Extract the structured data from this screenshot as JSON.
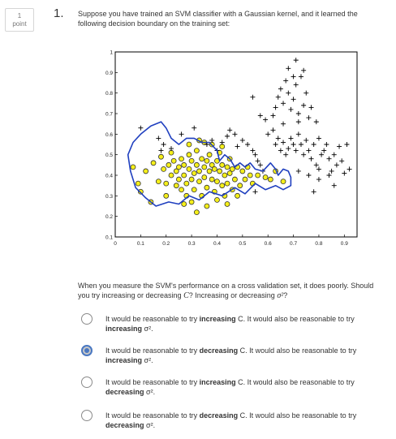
{
  "points": {
    "value": "1",
    "label": "point"
  },
  "question": {
    "number": "1.",
    "text": "Suppose you have trained an SVM classifier with a Gaussian kernel, and it learned the following decision boundary on the training set:",
    "followup_a": "When you measure the SVM's performance on a cross validation set, it does poorly. Should you try increasing or decreasing ",
    "followup_C": "C",
    "followup_b": "? Increasing or decreasing ",
    "followup_sigma": "σ²",
    "followup_c": "?"
  },
  "options": [
    {
      "pre": "It would be reasonable to try ",
      "act1": "increasing",
      "mid": " C. It would also be reasonable to try ",
      "act2": "increasing",
      "post": " σ².",
      "selected": false
    },
    {
      "pre": "It would be reasonable to try ",
      "act1": "decreasing",
      "mid": " C. It would also be reasonable to try ",
      "act2": "increasing",
      "post": " σ².",
      "selected": true
    },
    {
      "pre": "It would be reasonable to try ",
      "act1": "increasing",
      "mid": " C. It would also be reasonable to try ",
      "act2": "decreasing",
      "post": " σ².",
      "selected": false
    },
    {
      "pre": "It would be reasonable to try ",
      "act1": "decreasing",
      "mid": " C. It would also be reasonable to try ",
      "act2": "decreasing",
      "post": " σ².",
      "selected": false
    }
  ],
  "chart_data": {
    "type": "scatter",
    "xlim": [
      0,
      0.95
    ],
    "ylim": [
      0.1,
      1.0
    ],
    "xticks": [
      "0",
      "0.1",
      "0.2",
      "0.3",
      "0.4",
      "0.5",
      "0.6",
      "0.7",
      "0.8",
      "0.9"
    ],
    "yticks": [
      "0.1",
      "0.2",
      "0.3",
      "0.4",
      "0.5",
      "0.6",
      "0.7",
      "0.8",
      "0.9",
      "1"
    ],
    "grid": false,
    "colors": {
      "positive": "#000000",
      "negative_fill": "#f5ef1a",
      "negative_edge": "#333333",
      "boundary": "#1f3fbf"
    },
    "series": [
      {
        "marker": "plus",
        "points": [
          [
            0.1,
            0.63
          ],
          [
            0.17,
            0.58
          ],
          [
            0.18,
            0.52
          ],
          [
            0.19,
            0.55
          ],
          [
            0.22,
            0.53
          ],
          [
            0.26,
            0.6
          ],
          [
            0.31,
            0.63
          ],
          [
            0.36,
            0.55
          ],
          [
            0.38,
            0.57
          ],
          [
            0.4,
            0.52
          ],
          [
            0.42,
            0.56
          ],
          [
            0.44,
            0.59
          ],
          [
            0.45,
            0.62
          ],
          [
            0.47,
            0.6
          ],
          [
            0.48,
            0.54
          ],
          [
            0.5,
            0.57
          ],
          [
            0.52,
            0.55
          ],
          [
            0.54,
            0.52
          ],
          [
            0.55,
            0.5
          ],
          [
            0.56,
            0.47
          ],
          [
            0.57,
            0.45
          ],
          [
            0.58,
            0.42
          ],
          [
            0.55,
            0.32
          ],
          [
            0.6,
            0.6
          ],
          [
            0.62,
            0.62
          ],
          [
            0.63,
            0.55
          ],
          [
            0.64,
            0.58
          ],
          [
            0.65,
            0.52
          ],
          [
            0.66,
            0.56
          ],
          [
            0.67,
            0.5
          ],
          [
            0.68,
            0.53
          ],
          [
            0.69,
            0.58
          ],
          [
            0.7,
            0.55
          ],
          [
            0.71,
            0.52
          ],
          [
            0.72,
            0.6
          ],
          [
            0.73,
            0.55
          ],
          [
            0.74,
            0.5
          ],
          [
            0.75,
            0.57
          ],
          [
            0.76,
            0.52
          ],
          [
            0.77,
            0.48
          ],
          [
            0.78,
            0.55
          ],
          [
            0.79,
            0.45
          ],
          [
            0.8,
            0.58
          ],
          [
            0.81,
            0.5
          ],
          [
            0.82,
            0.52
          ],
          [
            0.83,
            0.55
          ],
          [
            0.84,
            0.48
          ],
          [
            0.85,
            0.42
          ],
          [
            0.86,
            0.5
          ],
          [
            0.87,
            0.45
          ],
          [
            0.88,
            0.54
          ],
          [
            0.89,
            0.47
          ],
          [
            0.9,
            0.41
          ],
          [
            0.91,
            0.55
          ],
          [
            0.92,
            0.43
          ],
          [
            0.72,
            0.42
          ],
          [
            0.76,
            0.4
          ],
          [
            0.8,
            0.38
          ],
          [
            0.84,
            0.4
          ],
          [
            0.86,
            0.35
          ],
          [
            0.78,
            0.32
          ],
          [
            0.62,
            0.69
          ],
          [
            0.63,
            0.73
          ],
          [
            0.64,
            0.78
          ],
          [
            0.65,
            0.82
          ],
          [
            0.66,
            0.75
          ],
          [
            0.67,
            0.86
          ],
          [
            0.68,
            0.8
          ],
          [
            0.69,
            0.72
          ],
          [
            0.7,
            0.77
          ],
          [
            0.71,
            0.84
          ],
          [
            0.72,
            0.7
          ],
          [
            0.73,
            0.88
          ],
          [
            0.74,
            0.74
          ],
          [
            0.75,
            0.8
          ],
          [
            0.76,
            0.68
          ],
          [
            0.77,
            0.73
          ],
          [
            0.68,
            0.92
          ],
          [
            0.7,
            0.88
          ],
          [
            0.74,
            0.91
          ],
          [
            0.66,
            0.65
          ],
          [
            0.72,
            0.66
          ],
          [
            0.79,
            0.66
          ],
          [
            0.59,
            0.67
          ],
          [
            0.57,
            0.69
          ],
          [
            0.54,
            0.78
          ],
          [
            0.71,
            0.96
          ],
          [
            0.8,
            0.43
          ]
        ]
      },
      {
        "marker": "circle",
        "points": [
          [
            0.07,
            0.44
          ],
          [
            0.09,
            0.36
          ],
          [
            0.1,
            0.32
          ],
          [
            0.14,
            0.27
          ],
          [
            0.12,
            0.42
          ],
          [
            0.15,
            0.46
          ],
          [
            0.18,
            0.49
          ],
          [
            0.19,
            0.43
          ],
          [
            0.2,
            0.36
          ],
          [
            0.2,
            0.3
          ],
          [
            0.21,
            0.45
          ],
          [
            0.22,
            0.4
          ],
          [
            0.23,
            0.47
          ],
          [
            0.24,
            0.42
          ],
          [
            0.24,
            0.35
          ],
          [
            0.25,
            0.38
          ],
          [
            0.25,
            0.44
          ],
          [
            0.26,
            0.33
          ],
          [
            0.26,
            0.48
          ],
          [
            0.27,
            0.4
          ],
          [
            0.27,
            0.45
          ],
          [
            0.28,
            0.36
          ],
          [
            0.28,
            0.3
          ],
          [
            0.29,
            0.43
          ],
          [
            0.29,
            0.5
          ],
          [
            0.3,
            0.38
          ],
          [
            0.3,
            0.47
          ],
          [
            0.31,
            0.41
          ],
          [
            0.31,
            0.33
          ],
          [
            0.32,
            0.45
          ],
          [
            0.32,
            0.52
          ],
          [
            0.33,
            0.37
          ],
          [
            0.33,
            0.42
          ],
          [
            0.34,
            0.48
          ],
          [
            0.34,
            0.3
          ],
          [
            0.35,
            0.44
          ],
          [
            0.35,
            0.39
          ],
          [
            0.36,
            0.47
          ],
          [
            0.36,
            0.34
          ],
          [
            0.37,
            0.42
          ],
          [
            0.37,
            0.5
          ],
          [
            0.38,
            0.38
          ],
          [
            0.38,
            0.45
          ],
          [
            0.39,
            0.32
          ],
          [
            0.39,
            0.43
          ],
          [
            0.4,
            0.47
          ],
          [
            0.4,
            0.37
          ],
          [
            0.41,
            0.42
          ],
          [
            0.41,
            0.51
          ],
          [
            0.42,
            0.35
          ],
          [
            0.42,
            0.45
          ],
          [
            0.43,
            0.4
          ],
          [
            0.43,
            0.3
          ],
          [
            0.44,
            0.44
          ],
          [
            0.44,
            0.36
          ],
          [
            0.45,
            0.41
          ],
          [
            0.45,
            0.48
          ],
          [
            0.46,
            0.33
          ],
          [
            0.46,
            0.43
          ],
          [
            0.47,
            0.38
          ],
          [
            0.48,
            0.44
          ],
          [
            0.49,
            0.35
          ],
          [
            0.5,
            0.42
          ],
          [
            0.51,
            0.38
          ],
          [
            0.52,
            0.44
          ],
          [
            0.53,
            0.4
          ],
          [
            0.54,
            0.36
          ],
          [
            0.56,
            0.4
          ],
          [
            0.59,
            0.39
          ],
          [
            0.61,
            0.38
          ],
          [
            0.63,
            0.42
          ],
          [
            0.66,
            0.37
          ],
          [
            0.32,
            0.22
          ],
          [
            0.36,
            0.25
          ],
          [
            0.3,
            0.27
          ],
          [
            0.27,
            0.26
          ],
          [
            0.4,
            0.28
          ],
          [
            0.44,
            0.26
          ],
          [
            0.48,
            0.3
          ],
          [
            0.38,
            0.55
          ],
          [
            0.35,
            0.56
          ],
          [
            0.22,
            0.51
          ],
          [
            0.17,
            0.37
          ],
          [
            0.33,
            0.57
          ],
          [
            0.42,
            0.54
          ],
          [
            0.29,
            0.55
          ]
        ]
      }
    ],
    "boundary": [
      [
        0.1,
        0.6
      ],
      [
        0.14,
        0.64
      ],
      [
        0.18,
        0.66
      ],
      [
        0.2,
        0.63
      ],
      [
        0.22,
        0.58
      ],
      [
        0.25,
        0.55
      ],
      [
        0.28,
        0.58
      ],
      [
        0.31,
        0.58
      ],
      [
        0.34,
        0.56
      ],
      [
        0.37,
        0.56
      ],
      [
        0.4,
        0.52
      ],
      [
        0.41,
        0.47
      ],
      [
        0.43,
        0.5
      ],
      [
        0.45,
        0.48
      ],
      [
        0.47,
        0.44
      ],
      [
        0.49,
        0.46
      ],
      [
        0.51,
        0.44
      ],
      [
        0.53,
        0.46
      ],
      [
        0.55,
        0.43
      ],
      [
        0.58,
        0.42
      ],
      [
        0.61,
        0.46
      ],
      [
        0.63,
        0.43
      ],
      [
        0.64,
        0.4
      ],
      [
        0.66,
        0.43
      ],
      [
        0.68,
        0.42
      ],
      [
        0.69,
        0.39
      ],
      [
        0.69,
        0.35
      ],
      [
        0.66,
        0.33
      ],
      [
        0.63,
        0.35
      ],
      [
        0.59,
        0.33
      ],
      [
        0.55,
        0.36
      ],
      [
        0.51,
        0.31
      ],
      [
        0.47,
        0.34
      ],
      [
        0.42,
        0.3
      ],
      [
        0.37,
        0.32
      ],
      [
        0.33,
        0.28
      ],
      [
        0.29,
        0.3
      ],
      [
        0.25,
        0.26
      ],
      [
        0.21,
        0.27
      ],
      [
        0.16,
        0.25
      ],
      [
        0.12,
        0.29
      ],
      [
        0.08,
        0.34
      ],
      [
        0.06,
        0.42
      ],
      [
        0.05,
        0.5
      ],
      [
        0.07,
        0.56
      ],
      [
        0.1,
        0.6
      ]
    ]
  }
}
